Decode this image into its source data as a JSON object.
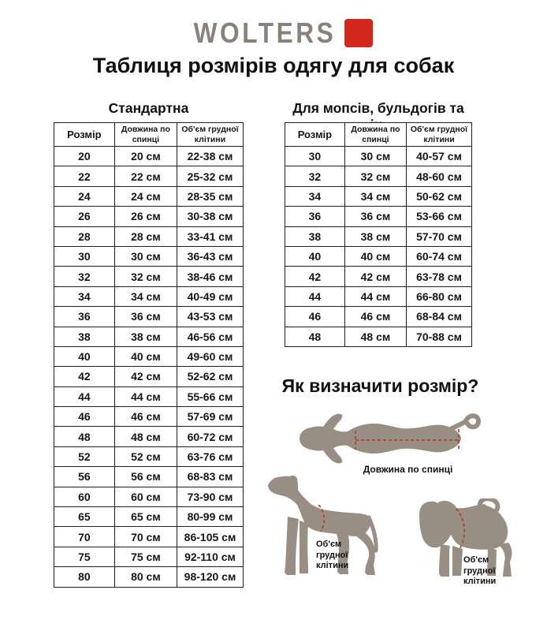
{
  "colors": {
    "logo_gray": "#8b8177",
    "brand_red": "#d2281c",
    "silhouette": "#988e84",
    "dash_red": "#b63a2b",
    "table_border": "#1d1d1d",
    "text": "#161616"
  },
  "brand": {
    "logo_text": "WOLTERS",
    "logo_mark": "red-square"
  },
  "page_title": "Таблиця розмірів одягу для собак",
  "tables": {
    "standard": {
      "title": "Стандартна",
      "columns": [
        "Розмір",
        "Довжина по спинці",
        "Об'єм грудної клітини"
      ],
      "rows": [
        [
          "20",
          "20 см",
          "22-38 см"
        ],
        [
          "22",
          "22 см",
          "25-32 см"
        ],
        [
          "24",
          "24 см",
          "28-35 см"
        ],
        [
          "26",
          "26 см",
          "30-38 см"
        ],
        [
          "28",
          "28 см",
          "33-41 см"
        ],
        [
          "30",
          "30 см",
          "36-43 см"
        ],
        [
          "32",
          "32 см",
          "38-46 см"
        ],
        [
          "34",
          "34 см",
          "40-49 см"
        ],
        [
          "36",
          "36 см",
          "43-53 см"
        ],
        [
          "38",
          "38 см",
          "46-56 см"
        ],
        [
          "40",
          "40 см",
          "49-60 см"
        ],
        [
          "42",
          "42 см",
          "52-62 см"
        ],
        [
          "44",
          "44 см",
          "55-66 см"
        ],
        [
          "46",
          "46 см",
          "57-69 см"
        ],
        [
          "48",
          "48 см",
          "60-72 см"
        ],
        [
          "52",
          "52 см",
          "63-76 см"
        ],
        [
          "56",
          "56 см",
          "68-83 см"
        ],
        [
          "60",
          "60 см",
          "73-90 см"
        ],
        [
          "65",
          "65 см",
          "80-99 см"
        ],
        [
          "70",
          "70 см",
          "86-105 см"
        ],
        [
          "75",
          "75 см",
          "92-110 см"
        ],
        [
          "80",
          "80 см",
          "98-120 см"
        ]
      ]
    },
    "pugs": {
      "title": "Для мопсів, бульдогів та ін.",
      "columns": [
        "Розмір",
        "Довжина по спинці",
        "Об'єм грудної клітини"
      ],
      "rows": [
        [
          "30",
          "30 см",
          "40-57 см"
        ],
        [
          "32",
          "32 см",
          "48-60 см"
        ],
        [
          "34",
          "34 см",
          "50-62 см"
        ],
        [
          "36",
          "36 см",
          "53-66 см"
        ],
        [
          "38",
          "38 см",
          "57-70 см"
        ],
        [
          "40",
          "40 см",
          "60-74 см"
        ],
        [
          "42",
          "42 см",
          "63-78 см"
        ],
        [
          "44",
          "44 см",
          "66-80 см"
        ],
        [
          "46",
          "46 см",
          "68-84 см"
        ],
        [
          "48",
          "48 см",
          "70-88 см"
        ]
      ]
    }
  },
  "how_to": {
    "title": "Як визначити розмір?",
    "back_length_label": "Довжина по спинці",
    "chest_label": "Об'єм\nгрудної\nклітини"
  }
}
